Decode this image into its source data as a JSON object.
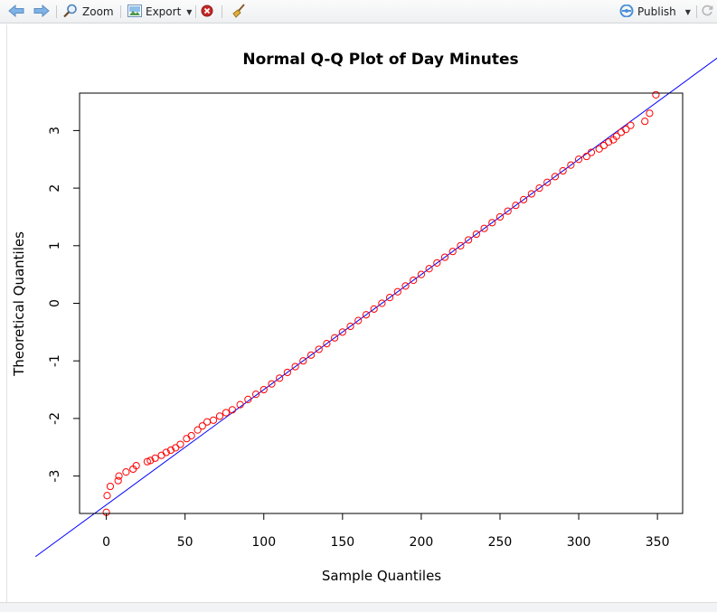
{
  "toolbar": {
    "back_icon": "arrow-left-icon",
    "forward_icon": "arrow-right-icon",
    "zoom_label": "Zoom",
    "export_label": "Export",
    "publish_label": "Publish",
    "accent_color": "#4a90d9"
  },
  "chart_data": {
    "type": "scatter",
    "title": "Normal Q-Q Plot of Day Minutes",
    "xlabel": "Sample Quantiles",
    "ylabel": "Theoretical Quantiles",
    "xlim": [
      -17,
      366
    ],
    "ylim": [
      -3.65,
      3.65
    ],
    "x_ticks": [
      0,
      50,
      100,
      150,
      200,
      250,
      300,
      350
    ],
    "y_ticks": [
      -3,
      -2,
      -1,
      0,
      1,
      2,
      3
    ],
    "point_color": "#ff0000",
    "line_color": "#0000ff",
    "reference_line": {
      "intercept": -3.5,
      "slope": 0.02
    },
    "series": [
      {
        "values": [
          [
            0,
            -3.63
          ],
          [
            0.5,
            -3.34
          ],
          [
            2.5,
            -3.18
          ],
          [
            7.5,
            -3.08
          ],
          [
            8,
            -3.0
          ],
          [
            12.5,
            -2.93
          ],
          [
            17,
            -2.88
          ],
          [
            19,
            -2.82
          ],
          [
            26,
            -2.75
          ],
          [
            28,
            -2.73
          ],
          [
            31,
            -2.69
          ],
          [
            35,
            -2.64
          ],
          [
            38,
            -2.59
          ],
          [
            41,
            -2.55
          ],
          [
            44,
            -2.51
          ],
          [
            47,
            -2.45
          ],
          [
            51,
            -2.35
          ],
          [
            54,
            -2.3
          ],
          [
            58,
            -2.2
          ],
          [
            61,
            -2.13
          ],
          [
            64,
            -2.06
          ],
          [
            68,
            -2.03
          ],
          [
            72,
            -1.96
          ],
          [
            76,
            -1.9
          ],
          [
            80,
            -1.85
          ],
          [
            85,
            -1.76
          ],
          [
            90,
            -1.67
          ],
          [
            95,
            -1.58
          ],
          [
            100,
            -1.5
          ],
          [
            105,
            -1.4
          ],
          [
            110,
            -1.3
          ],
          [
            115,
            -1.2
          ],
          [
            120,
            -1.1
          ],
          [
            125,
            -1.0
          ],
          [
            130,
            -0.9
          ],
          [
            135,
            -0.8
          ],
          [
            140,
            -0.7
          ],
          [
            145,
            -0.6
          ],
          [
            150,
            -0.5
          ],
          [
            155,
            -0.4
          ],
          [
            160,
            -0.3
          ],
          [
            165,
            -0.2
          ],
          [
            170,
            -0.1
          ],
          [
            175,
            0.0
          ],
          [
            180,
            0.1
          ],
          [
            185,
            0.2
          ],
          [
            190,
            0.3
          ],
          [
            195,
            0.4
          ],
          [
            200,
            0.5
          ],
          [
            205,
            0.6
          ],
          [
            210,
            0.7
          ],
          [
            215,
            0.8
          ],
          [
            220,
            0.9
          ],
          [
            225,
            1.0
          ],
          [
            230,
            1.1
          ],
          [
            235,
            1.2
          ],
          [
            240,
            1.3
          ],
          [
            245,
            1.4
          ],
          [
            250,
            1.5
          ],
          [
            255,
            1.6
          ],
          [
            260,
            1.7
          ],
          [
            265,
            1.8
          ],
          [
            270,
            1.9
          ],
          [
            275,
            2.0
          ],
          [
            280,
            2.1
          ],
          [
            285,
            2.2
          ],
          [
            290,
            2.3
          ],
          [
            295,
            2.4
          ],
          [
            300,
            2.5
          ],
          [
            305,
            2.55
          ],
          [
            308,
            2.62
          ],
          [
            313,
            2.68
          ],
          [
            316,
            2.74
          ],
          [
            319,
            2.8
          ],
          [
            322,
            2.84
          ],
          [
            324,
            2.9
          ],
          [
            327,
            2.97
          ],
          [
            330,
            3.02
          ],
          [
            333,
            3.09
          ],
          [
            342,
            3.16
          ],
          [
            345,
            3.3
          ],
          [
            349,
            3.62
          ]
        ]
      }
    ]
  }
}
